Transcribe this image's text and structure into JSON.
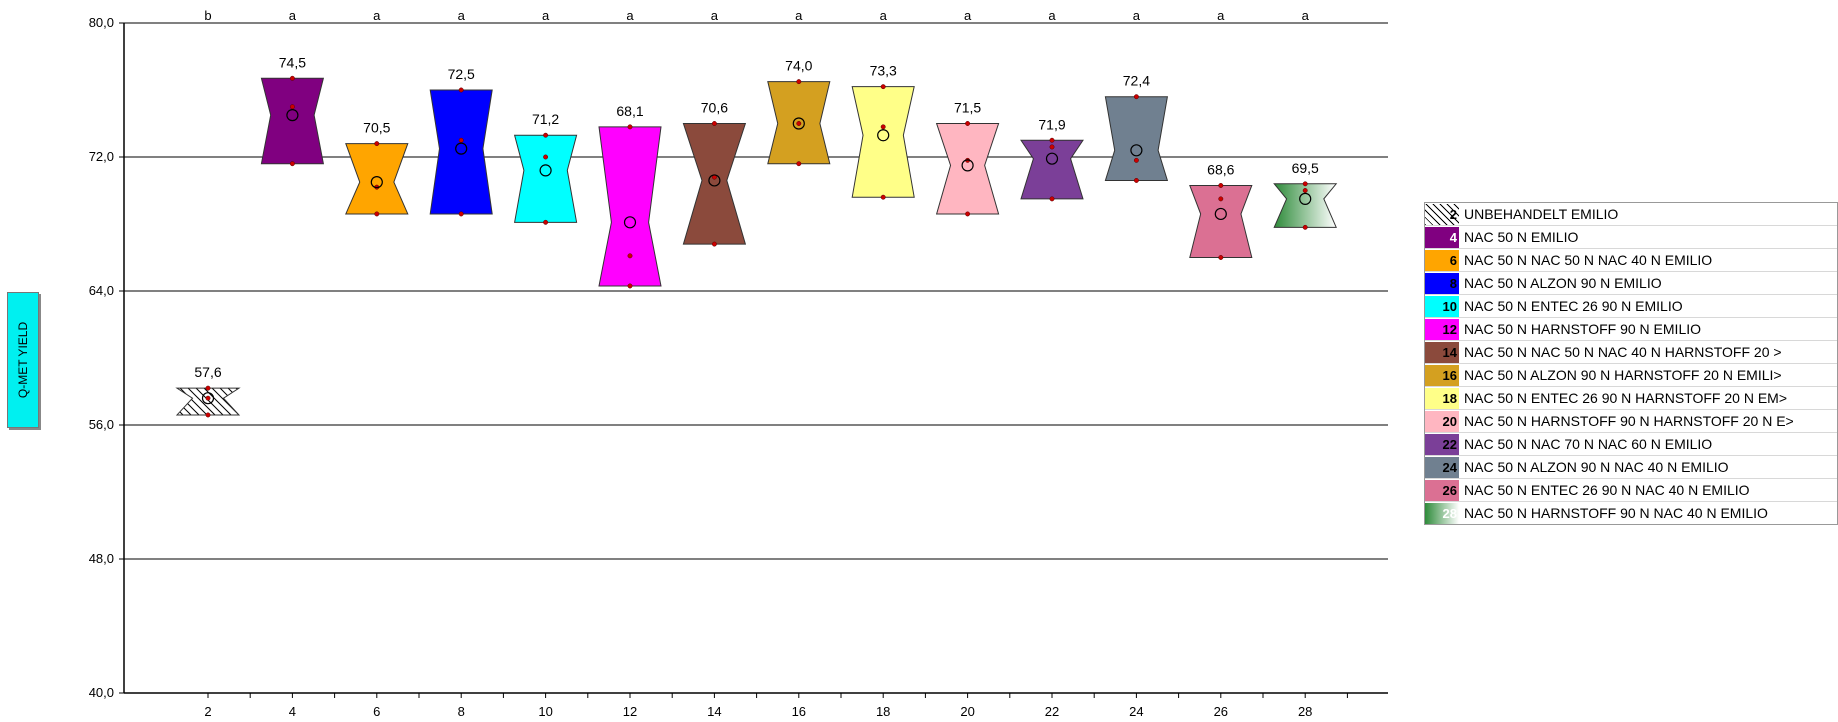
{
  "chart_data": {
    "type": "box",
    "ylabel": "Q-MET YIELD",
    "ylim": [
      40,
      80
    ],
    "yticks": [
      "40,0",
      "48,0",
      "56,0",
      "64,0",
      "72,0",
      "80,0"
    ],
    "gridlines": [
      48,
      56,
      64,
      72,
      80
    ],
    "categories": [
      "2",
      "4",
      "6",
      "8",
      "10",
      "12",
      "14",
      "16",
      "18",
      "20",
      "22",
      "24",
      "26",
      "28"
    ],
    "letters": [
      "b",
      "a",
      "a",
      "a",
      "a",
      "a",
      "a",
      "a",
      "a",
      "a",
      "a",
      "a",
      "a",
      "a"
    ],
    "means": [
      57.6,
      74.5,
      70.5,
      72.5,
      71.2,
      68.1,
      70.6,
      74.0,
      73.3,
      71.5,
      71.9,
      72.4,
      68.6,
      69.5
    ],
    "mean_labels": [
      "57,6",
      "74,5",
      "70,5",
      "72,5",
      "71,2",
      "68,1",
      "70,6",
      "74,0",
      "73,3",
      "71,5",
      "71,9",
      "72,4",
      "68,6",
      "69,5"
    ],
    "box_low": [
      56.6,
      71.6,
      68.6,
      68.6,
      68.1,
      64.3,
      66.8,
      71.6,
      69.6,
      68.6,
      69.5,
      70.6,
      66.0,
      67.8
    ],
    "box_high": [
      58.2,
      76.7,
      72.8,
      76.0,
      73.3,
      73.8,
      74.0,
      76.5,
      76.2,
      74.0,
      73.0,
      75.6,
      70.3,
      70.4
    ],
    "notch_frac": [
      0.5,
      0.7,
      0.55,
      0.7,
      0.7,
      0.6,
      0.4,
      0.68,
      0.65,
      0.55,
      0.6,
      0.7,
      0.65,
      0.6
    ],
    "points": [
      [
        56.6,
        57.6,
        58.2
      ],
      [
        71.6,
        75.0,
        76.7
      ],
      [
        68.6,
        70.2,
        72.8
      ],
      [
        68.6,
        73.0,
        76.0
      ],
      [
        68.1,
        72.0,
        73.3
      ],
      [
        64.3,
        66.1,
        73.8
      ],
      [
        66.8,
        70.8,
        74.0
      ],
      [
        71.6,
        74.0,
        76.5
      ],
      [
        69.6,
        73.8,
        76.2
      ],
      [
        68.6,
        71.8,
        74.0
      ],
      [
        69.5,
        72.6,
        73.0
      ],
      [
        70.6,
        71.8,
        75.6
      ],
      [
        66.0,
        69.5,
        70.3
      ],
      [
        67.8,
        70.0,
        70.4
      ]
    ],
    "series": [
      {
        "code": "2",
        "name": "UNBEHANDELT EMILIO",
        "color": "#ffffff",
        "pattern": "hatch",
        "code_color": "#000000"
      },
      {
        "code": "4",
        "name": "NAC 50 N EMILIO",
        "color": "#800080",
        "code_color": "#ffffff"
      },
      {
        "code": "6",
        "name": "NAC 50 N NAC 50 N NAC 40 N EMILIO",
        "color": "#ffa500",
        "code_color": "#000000"
      },
      {
        "code": "8",
        "name": "NAC 50 N ALZON 90 N EMILIO",
        "color": "#0000ff",
        "code_color": "#000000"
      },
      {
        "code": "10",
        "name": "NAC 50 N ENTEC 26 90 N EMILIO",
        "color": "#00ffff",
        "code_color": "#000000"
      },
      {
        "code": "12",
        "name": "NAC 50 N HARNSTOFF 90 N EMILIO",
        "color": "#ff00ff",
        "code_color": "#000000"
      },
      {
        "code": "14",
        "name": "NAC 50 N NAC 50 N NAC 40 N HARNSTOFF 20 >",
        "color": "#8b4a3c",
        "code_color": "#000000"
      },
      {
        "code": "16",
        "name": "NAC 50 N ALZON 90 N HARNSTOFF 20 N EMILI>",
        "color": "#d4a020",
        "code_color": "#000000"
      },
      {
        "code": "18",
        "name": "NAC 50 N ENTEC 26 90 N HARNSTOFF 20 N EM>",
        "color": "#ffff88",
        "code_color": "#000000"
      },
      {
        "code": "20",
        "name": "NAC 50 N HARNSTOFF 90 N HARNSTOFF 20 N E>",
        "color": "#ffb6c1",
        "code_color": "#000000"
      },
      {
        "code": "22",
        "name": "NAC 50 N NAC 70 N NAC 60 N EMILIO",
        "color": "#7b3f98",
        "code_color": "#000000"
      },
      {
        "code": "24",
        "name": "NAC 50 N ALZON 90 N NAC 40 N EMILIO",
        "color": "#708090",
        "code_color": "#000000"
      },
      {
        "code": "26",
        "name": "NAC 50 N ENTEC 26 90 N NAC 40 N EMILIO",
        "color": "#db7093",
        "code_color": "#000000"
      },
      {
        "code": "28",
        "name": "NAC 50 N HARNSTOFF 90 N NAC 40 N EMILIO",
        "color": "#2e8b3a",
        "pattern": "gradient",
        "code_color": "#ffffff"
      }
    ]
  }
}
